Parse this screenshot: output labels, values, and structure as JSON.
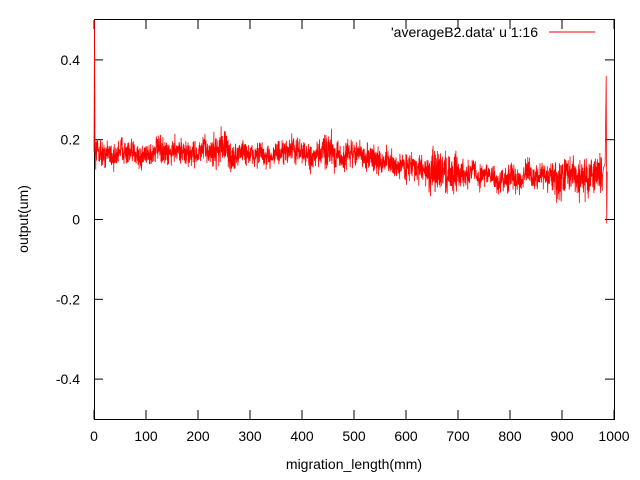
{
  "chart_data": {
    "type": "line",
    "title": "",
    "xlabel": "migration_length(mm)",
    "ylabel": "output(um)",
    "xlim": [
      0,
      1000
    ],
    "ylim": [
      -0.5,
      0.5
    ],
    "x_ticks": [
      "0",
      "100",
      "200",
      "300",
      "400",
      "500",
      "600",
      "700",
      "800",
      "900",
      "1000"
    ],
    "y_ticks": [
      "-0.4",
      "-0.2",
      "0",
      "0.2",
      "0.4"
    ],
    "legend_position": "top-right",
    "grid": false,
    "series": [
      {
        "name": "'averageB2.data' u 1:16",
        "color": "#ff0000",
        "x": [
          0,
          1,
          2,
          5,
          10,
          20,
          30,
          40,
          50,
          60,
          70,
          80,
          90,
          100,
          110,
          120,
          130,
          140,
          150,
          160,
          170,
          180,
          190,
          200,
          210,
          220,
          230,
          240,
          250,
          260,
          270,
          280,
          290,
          300,
          310,
          320,
          330,
          340,
          350,
          360,
          370,
          380,
          390,
          400,
          410,
          420,
          430,
          440,
          450,
          460,
          470,
          480,
          490,
          500,
          510,
          520,
          530,
          540,
          550,
          560,
          570,
          580,
          590,
          600,
          610,
          620,
          630,
          640,
          650,
          660,
          670,
          680,
          690,
          700,
          710,
          720,
          730,
          740,
          750,
          760,
          770,
          780,
          790,
          800,
          810,
          820,
          830,
          840,
          850,
          860,
          870,
          880,
          890,
          900,
          910,
          920,
          930,
          940,
          950,
          960,
          970,
          975,
          980,
          983,
          985,
          986,
          987
        ],
        "y": [
          0.17,
          0.5,
          0.16,
          0.18,
          0.17,
          0.16,
          0.17,
          0.15,
          0.18,
          0.17,
          0.16,
          0.17,
          0.15,
          0.17,
          0.16,
          0.18,
          0.17,
          0.16,
          0.17,
          0.18,
          0.17,
          0.16,
          0.17,
          0.16,
          0.18,
          0.17,
          0.17,
          0.18,
          0.19,
          0.16,
          0.15,
          0.17,
          0.17,
          0.16,
          0.16,
          0.17,
          0.15,
          0.16,
          0.17,
          0.16,
          0.17,
          0.18,
          0.17,
          0.17,
          0.16,
          0.15,
          0.16,
          0.17,
          0.18,
          0.17,
          0.16,
          0.15,
          0.17,
          0.16,
          0.17,
          0.15,
          0.16,
          0.15,
          0.14,
          0.15,
          0.14,
          0.13,
          0.14,
          0.13,
          0.14,
          0.12,
          0.13,
          0.12,
          0.11,
          0.12,
          0.13,
          0.11,
          0.12,
          0.11,
          0.12,
          0.11,
          0.13,
          0.1,
          0.12,
          0.11,
          0.1,
          0.09,
          0.1,
          0.11,
          0.1,
          0.1,
          0.12,
          0.11,
          0.1,
          0.12,
          0.1,
          0.11,
          0.09,
          0.1,
          0.12,
          0.11,
          0.1,
          0.11,
          0.1,
          0.12,
          0.11,
          0.12,
          0.13,
          0.14,
          0.36,
          -0.01,
          0.12
        ]
      }
    ]
  }
}
